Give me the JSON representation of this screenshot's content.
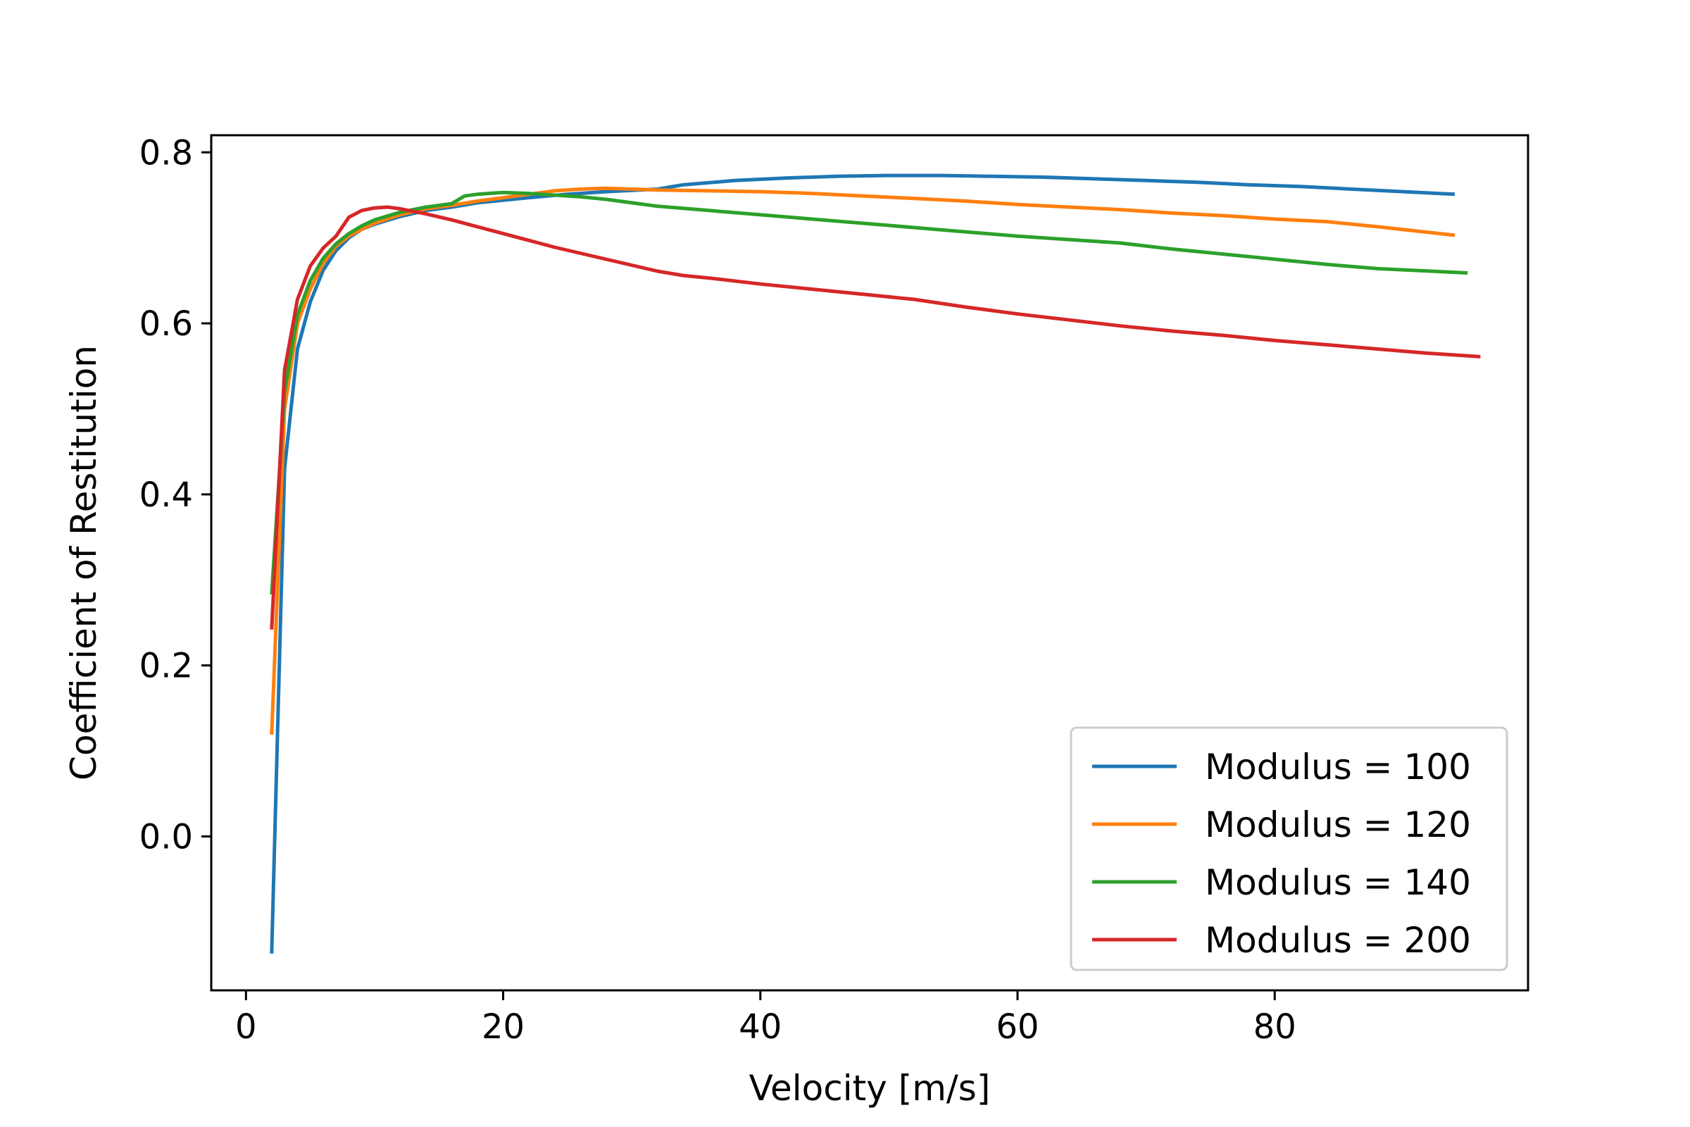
{
  "chart_data": {
    "type": "line",
    "title": "",
    "xlabel": "Velocity [m/s]",
    "ylabel": "Coefficient of Restitution",
    "xlim": [
      -2.7,
      99.7
    ],
    "ylim": [
      -0.18,
      0.82
    ],
    "xticks": [
      0,
      20,
      40,
      60,
      80
    ],
    "yticks": [
      0.0,
      0.2,
      0.4,
      0.6,
      0.8
    ],
    "xtick_labels": [
      "0",
      "20",
      "40",
      "60",
      "80"
    ],
    "ytick_labels": [
      "0.0",
      "0.2",
      "0.4",
      "0.6",
      "0.8"
    ],
    "grid": false,
    "legend": "lower-right",
    "series": [
      {
        "name": "Modulus = 100",
        "color": "#1f77b4",
        "x": [
          2,
          3,
          4,
          5,
          6,
          7,
          8,
          9,
          10,
          12,
          14,
          16,
          18,
          20,
          22,
          25,
          28,
          32,
          34,
          38,
          42,
          46,
          50,
          54,
          58,
          62,
          66,
          70,
          74,
          78,
          82,
          86,
          90,
          94
        ],
        "y": [
          -0.137,
          0.43,
          0.57,
          0.625,
          0.662,
          0.685,
          0.7,
          0.71,
          0.716,
          0.725,
          0.732,
          0.736,
          0.741,
          0.744,
          0.747,
          0.751,
          0.754,
          0.757,
          0.762,
          0.767,
          0.77,
          0.772,
          0.773,
          0.773,
          0.772,
          0.771,
          0.769,
          0.767,
          0.765,
          0.762,
          0.76,
          0.757,
          0.754,
          0.751
        ]
      },
      {
        "name": "Modulus = 120",
        "color": "#ff7f0e",
        "x": [
          2,
          3,
          4,
          5,
          6,
          7,
          8,
          9,
          10,
          12,
          14,
          16,
          18,
          20,
          22,
          24,
          26,
          28,
          30,
          32,
          36,
          40,
          44,
          48,
          52,
          56,
          60,
          64,
          68,
          72,
          76,
          80,
          84,
          88,
          94
        ],
        "y": [
          0.119,
          0.5,
          0.6,
          0.64,
          0.67,
          0.69,
          0.702,
          0.71,
          0.717,
          0.727,
          0.734,
          0.738,
          0.743,
          0.747,
          0.751,
          0.755,
          0.757,
          0.758,
          0.757,
          0.756,
          0.755,
          0.754,
          0.752,
          0.749,
          0.746,
          0.743,
          0.739,
          0.736,
          0.733,
          0.729,
          0.726,
          0.722,
          0.719,
          0.713,
          0.703
        ]
      },
      {
        "name": "Modulus = 140",
        "color": "#2ca02c",
        "x": [
          2,
          3,
          4,
          5,
          6,
          7,
          8,
          9,
          10,
          12,
          14,
          16,
          17,
          18,
          20,
          22,
          24,
          26,
          28,
          30,
          32,
          36,
          40,
          44,
          48,
          52,
          56,
          60,
          64,
          68,
          72,
          76,
          80,
          84,
          88,
          95
        ],
        "y": [
          0.283,
          0.52,
          0.61,
          0.65,
          0.676,
          0.693,
          0.705,
          0.714,
          0.721,
          0.73,
          0.736,
          0.74,
          0.749,
          0.751,
          0.753,
          0.752,
          0.75,
          0.748,
          0.745,
          0.741,
          0.737,
          0.732,
          0.727,
          0.722,
          0.717,
          0.712,
          0.707,
          0.702,
          0.698,
          0.694,
          0.687,
          0.681,
          0.675,
          0.669,
          0.664,
          0.659
        ]
      },
      {
        "name": "Modulus = 200",
        "color": "#d62728",
        "x": [
          2,
          3,
          4,
          5,
          6,
          7,
          8,
          9,
          10,
          11,
          12,
          14,
          16,
          18,
          20,
          22,
          24,
          26,
          28,
          30,
          32,
          34,
          36,
          40,
          44,
          48,
          52,
          56,
          60,
          64,
          68,
          72,
          76,
          80,
          84,
          88,
          92,
          96
        ],
        "y": [
          0.242,
          0.545,
          0.628,
          0.667,
          0.688,
          0.702,
          0.724,
          0.732,
          0.735,
          0.736,
          0.734,
          0.728,
          0.721,
          0.713,
          0.705,
          0.697,
          0.689,
          0.682,
          0.675,
          0.668,
          0.661,
          0.656,
          0.653,
          0.646,
          0.64,
          0.634,
          0.628,
          0.619,
          0.611,
          0.604,
          0.597,
          0.591,
          0.586,
          0.58,
          0.575,
          0.57,
          0.565,
          0.561
        ]
      }
    ]
  }
}
